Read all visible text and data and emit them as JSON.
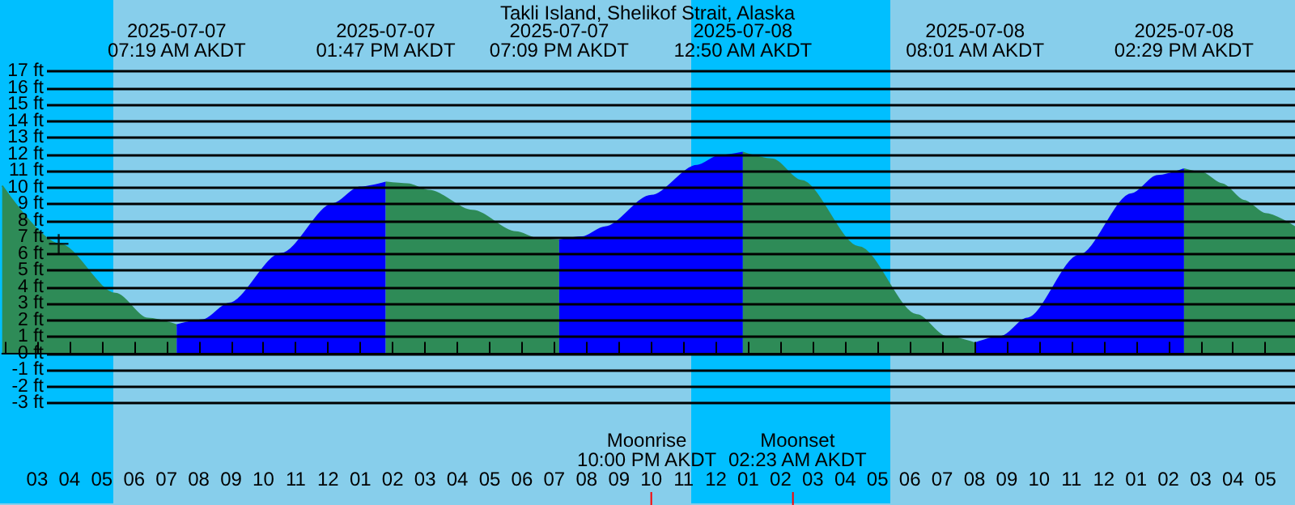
{
  "chart_data": {
    "type": "area",
    "title": "Takli Island, Shelikof Strait, Alaska",
    "xlim": [
      "2025-07-07T01:55",
      "2025-07-08T17:55"
    ],
    "ylim": [
      -3,
      17
    ],
    "yticks": [
      {
        "value": -3,
        "label": "-3 ft"
      },
      {
        "value": -2,
        "label": "-2 ft"
      },
      {
        "value": -1,
        "label": "-1 ft"
      },
      {
        "value": 0,
        "label": "0 ft"
      },
      {
        "value": 1,
        "label": "1 ft"
      },
      {
        "value": 2,
        "label": "2 ft"
      },
      {
        "value": 3,
        "label": "3 ft"
      },
      {
        "value": 4,
        "label": "4 ft"
      },
      {
        "value": 5,
        "label": "5 ft"
      },
      {
        "value": 6,
        "label": "6 ft"
      },
      {
        "value": 7,
        "label": "7 ft"
      },
      {
        "value": 8,
        "label": "8 ft"
      },
      {
        "value": 9,
        "label": "9 ft"
      },
      {
        "value": 10,
        "label": "10 ft"
      },
      {
        "value": 11,
        "label": "11 ft"
      },
      {
        "value": 12,
        "label": "12 ft"
      },
      {
        "value": 13,
        "label": "13 ft"
      },
      {
        "value": 14,
        "label": "14 ft"
      },
      {
        "value": 15,
        "label": "15 ft"
      },
      {
        "value": 16,
        "label": "16 ft"
      },
      {
        "value": 17,
        "label": "17 ft"
      }
    ],
    "xticks": [
      {
        "value": "2025-07-07T02:00",
        "label": null
      },
      {
        "value": "2025-07-07T03:00",
        "label": "03"
      },
      {
        "value": "2025-07-07T04:00",
        "label": "04"
      },
      {
        "value": "2025-07-07T05:00",
        "label": "05"
      },
      {
        "value": "2025-07-07T06:00",
        "label": "06"
      },
      {
        "value": "2025-07-07T07:00",
        "label": "07"
      },
      {
        "value": "2025-07-07T08:00",
        "label": "08"
      },
      {
        "value": "2025-07-07T09:00",
        "label": "09"
      },
      {
        "value": "2025-07-07T10:00",
        "label": "10"
      },
      {
        "value": "2025-07-07T11:00",
        "label": "11"
      },
      {
        "value": "2025-07-07T12:00",
        "label": "12"
      },
      {
        "value": "2025-07-07T13:00",
        "label": "01"
      },
      {
        "value": "2025-07-07T14:00",
        "label": "02"
      },
      {
        "value": "2025-07-07T15:00",
        "label": "03"
      },
      {
        "value": "2025-07-07T16:00",
        "label": "04"
      },
      {
        "value": "2025-07-07T17:00",
        "label": "05"
      },
      {
        "value": "2025-07-07T18:00",
        "label": "06"
      },
      {
        "value": "2025-07-07T19:00",
        "label": "07"
      },
      {
        "value": "2025-07-07T20:00",
        "label": "08"
      },
      {
        "value": "2025-07-07T21:00",
        "label": "09"
      },
      {
        "value": "2025-07-07T22:00",
        "label": "10"
      },
      {
        "value": "2025-07-07T23:00",
        "label": "11"
      },
      {
        "value": "2025-07-08T00:00",
        "label": "12"
      },
      {
        "value": "2025-07-08T01:00",
        "label": "01"
      },
      {
        "value": "2025-07-08T02:00",
        "label": "02"
      },
      {
        "value": "2025-07-08T03:00",
        "label": "03"
      },
      {
        "value": "2025-07-08T04:00",
        "label": "04"
      },
      {
        "value": "2025-07-08T05:00",
        "label": "05"
      },
      {
        "value": "2025-07-08T06:00",
        "label": "06"
      },
      {
        "value": "2025-07-08T07:00",
        "label": "07"
      },
      {
        "value": "2025-07-08T08:00",
        "label": "08"
      },
      {
        "value": "2025-07-08T09:00",
        "label": "09"
      },
      {
        "value": "2025-07-08T10:00",
        "label": "10"
      },
      {
        "value": "2025-07-08T11:00",
        "label": "11"
      },
      {
        "value": "2025-07-08T12:00",
        "label": "12"
      },
      {
        "value": "2025-07-08T13:00",
        "label": "01"
      },
      {
        "value": "2025-07-08T14:00",
        "label": "02"
      },
      {
        "value": "2025-07-08T15:00",
        "label": "03"
      },
      {
        "value": "2025-07-08T16:00",
        "label": "04"
      },
      {
        "value": "2025-07-08T17:00",
        "label": "05"
      }
    ],
    "grid": "y",
    "bands": [
      {
        "axis": "x",
        "from": "2025-07-07T01:55",
        "to": "2025-07-07T05:25",
        "color": "#00bfff"
      },
      {
        "axis": "x",
        "from": "2025-07-07T23:16",
        "to": "2025-07-08T05:25",
        "color": "#00bfff"
      }
    ],
    "series": [
      {
        "color": "#2e8b57",
        "x": [
          "2025-07-07T01:55",
          "2025-07-07T03:40",
          "2025-07-07T05:25",
          "2025-07-07T06:25",
          "2025-07-07T07:19"
        ],
        "values": [
          10.1,
          6.6,
          3.6,
          2.1,
          1.7
        ]
      },
      {
        "color": "#0000ff",
        "x": [
          "2025-07-07T07:19",
          "2025-07-07T08:08",
          "2025-07-07T08:56",
          "2025-07-07T10:33",
          "2025-07-07T12:10",
          "2025-07-07T12:58",
          "2025-07-07T13:47"
        ],
        "values": [
          1.7,
          2.0,
          3.0,
          6.0,
          9.0,
          10.0,
          10.3
        ]
      },
      {
        "color": "#2e8b57",
        "x": [
          "2025-07-07T13:47",
          "2025-07-07T14:27",
          "2025-07-07T15:07",
          "2025-07-07T16:28",
          "2025-07-07T17:49",
          "2025-07-07T18:29",
          "2025-07-07T19:09"
        ],
        "values": [
          10.3,
          10.2,
          9.8,
          8.6,
          7.3,
          6.9,
          6.8
        ]
      },
      {
        "color": "#0000ff",
        "x": [
          "2025-07-07T19:09",
          "2025-07-07T19:52",
          "2025-07-07T20:34",
          "2025-07-07T22:00",
          "2025-07-07T23:25",
          "2025-07-08T00:07",
          "2025-07-08T00:50"
        ],
        "values": [
          6.8,
          7.0,
          7.6,
          9.5,
          11.3,
          11.9,
          12.1
        ]
      },
      {
        "color": "#2e8b57",
        "x": [
          "2025-07-08T00:50",
          "2025-07-08T01:44",
          "2025-07-08T02:38",
          "2025-07-08T04:25",
          "2025-07-08T06:13",
          "2025-07-08T07:07",
          "2025-07-08T08:01"
        ],
        "values": [
          12.1,
          11.7,
          10.4,
          6.4,
          2.3,
          1.0,
          0.6
        ]
      },
      {
        "color": "#0000ff",
        "x": [
          "2025-07-08T08:01",
          "2025-07-08T08:50",
          "2025-07-08T09:38",
          "2025-07-08T11:15",
          "2025-07-08T12:52",
          "2025-07-08T13:40",
          "2025-07-08T14:29"
        ],
        "values": [
          0.6,
          1.0,
          2.1,
          5.9,
          9.6,
          10.7,
          11.1
        ]
      },
      {
        "color": "#2e8b57",
        "x": [
          "2025-07-08T14:29",
          "2025-07-08T15:00",
          "2025-07-08T15:40",
          "2025-07-08T16:20",
          "2025-07-08T17:00",
          "2025-07-08T17:55"
        ],
        "values": [
          11.1,
          10.9,
          10.2,
          9.2,
          8.4,
          7.6
        ]
      },
      {
        "type": "scatter",
        "marker": "cross",
        "color": "#000000",
        "x": [
          "2025-07-07T03:40"
        ],
        "values": [
          6.6
        ]
      }
    ],
    "ref_lines": [
      {
        "axis": "x",
        "value": "2025-07-07T22:00",
        "label": "Moonrise\n10:00 PM AKDT",
        "color": "#ff0000"
      },
      {
        "axis": "x",
        "value": "2025-07-08T02:23",
        "label": "Moonset\n02:23 AM AKDT",
        "color": "#ff0000"
      }
    ],
    "annotations": [
      "2025-07-07\n07:19 AM AKDT",
      "2025-07-07\n01:47 PM AKDT",
      "2025-07-07\n07:09 PM AKDT",
      "2025-07-08\n12:50 AM AKDT",
      "2025-07-08\n08:01 AM AKDT",
      "2025-07-08\n02:29 PM AKDT"
    ]
  }
}
